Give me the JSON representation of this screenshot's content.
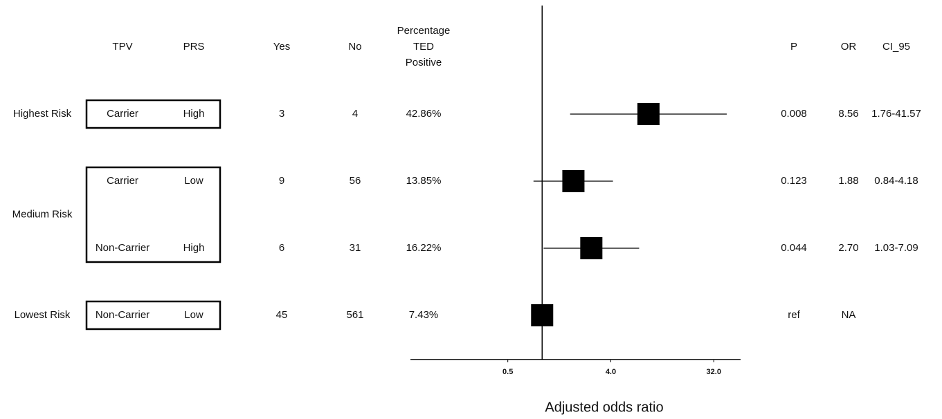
{
  "chart_data": {
    "type": "forest",
    "headers": {
      "tpv": "TPV",
      "prs": "PRS",
      "yes": "Yes",
      "no": "No",
      "percent": [
        "Percentage",
        "TED",
        "Positive"
      ],
      "p": "P",
      "or": "OR",
      "ci": "CI_95"
    },
    "groups": [
      {
        "label": "Highest Risk",
        "rows": [
          {
            "tpv": "Carrier",
            "prs": "High",
            "yes": 3,
            "no": 4,
            "percent": "42.86%",
            "p": 0.008,
            "or": 8.56,
            "ci_low": 1.76,
            "ci_high": 41.57,
            "ci_label": "1.76-41.57"
          }
        ]
      },
      {
        "label": "Medium Risk",
        "rows": [
          {
            "tpv": "Carrier",
            "prs": "Low",
            "yes": 9,
            "no": 56,
            "percent": "13.85%",
            "p": 0.123,
            "or": 1.88,
            "ci_low": 0.84,
            "ci_high": 4.18,
            "ci_label": "0.84-4.18"
          },
          {
            "tpv": "Non-Carrier",
            "prs": "High",
            "yes": 6,
            "no": 31,
            "percent": "16.22%",
            "p": 0.044,
            "or": {
              "value": 2.7,
              "label": "2.70"
            },
            "ci_low": 1.03,
            "ci_high": 7.09,
            "ci_label": "1.03-7.09"
          }
        ]
      },
      {
        "label": "Lowest Risk",
        "rows": [
          {
            "tpv": "Non-Carrier",
            "prs": "Low",
            "yes": 45,
            "no": 561,
            "percent": "7.43%",
            "p": "ref",
            "or": "NA",
            "estimate": 1
          }
        ]
      }
    ],
    "xlabel": "Adjusted odds ratio",
    "xscale": "log2",
    "xlim": [
      0.07,
      55
    ],
    "xticks": [
      0.5,
      {
        "value": 4,
        "label": "4.0"
      },
      {
        "value": 32,
        "label": "32.0"
      }
    ],
    "ref_line": 1,
    "color": "#000000"
  }
}
